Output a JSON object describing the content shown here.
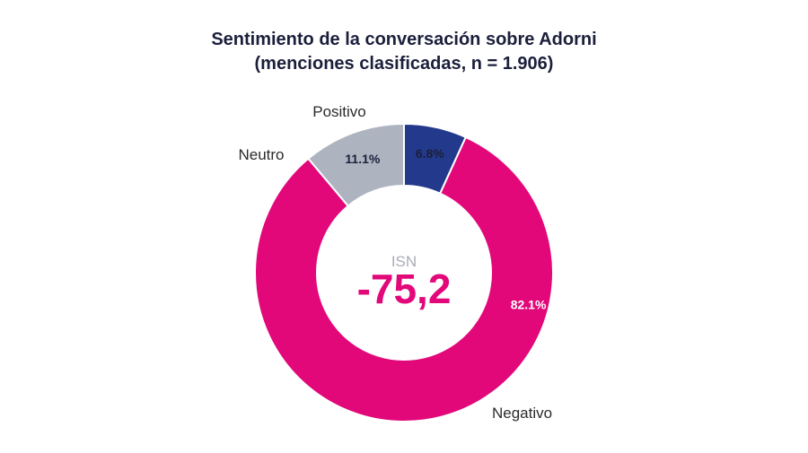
{
  "chart_data": {
    "type": "pie",
    "title": "Sentimiento de la conversación sobre Adorni",
    "subtitle": "(menciones clasificadas, n = 1.906)",
    "slices": [
      {
        "label": "Positivo",
        "value": 6.8,
        "value_label": "6.8%",
        "color": "#233a8c",
        "text_color": "#1b1f3b"
      },
      {
        "label": "Negativo",
        "value": 82.1,
        "value_label": "82.1%",
        "color": "#e2087a",
        "text_color": "#ffffff"
      },
      {
        "label": "Neutro",
        "value": 11.1,
        "value_label": "11.1%",
        "color": "#aeb4bf",
        "text_color": "#1b1f3b"
      }
    ],
    "center": {
      "label": "ISN",
      "value": "-75,2",
      "value_color": "#e2087a"
    }
  }
}
